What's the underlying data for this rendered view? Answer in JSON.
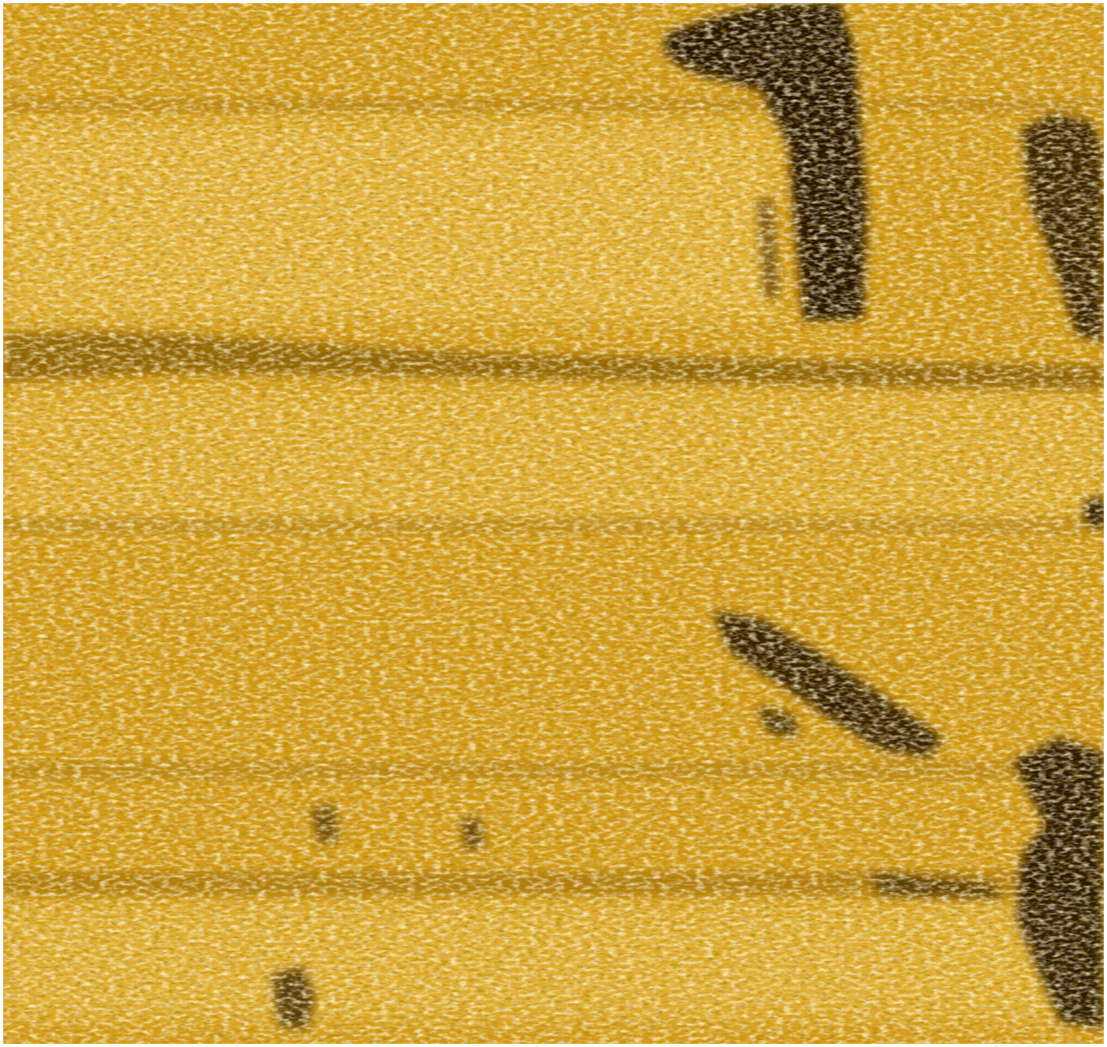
{
  "image": {
    "kind": "side-scan sonar image",
    "palette": {
      "background": "#ffffff",
      "base": "#d6a21e",
      "highlight": "#ffe9a6",
      "shadow": "#1e0f03",
      "mid_dark": "#8a5a06"
    }
  }
}
